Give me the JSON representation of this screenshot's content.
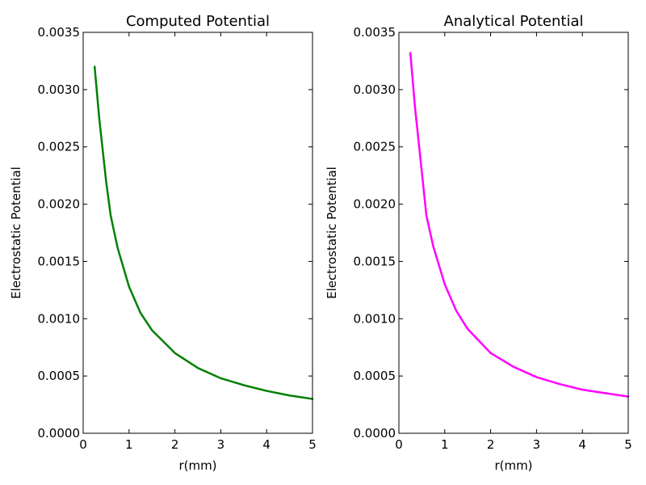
{
  "chart_data": [
    {
      "type": "line",
      "title": "Computed Potential",
      "xlabel": "r(mm)",
      "ylabel": "Electrostatic Potential",
      "xlim": [
        0,
        5
      ],
      "ylim": [
        0,
        0.0035
      ],
      "x_ticks": [
        "0",
        "1",
        "2",
        "3",
        "4",
        "5"
      ],
      "y_ticks": [
        "0.0000",
        "0.0005",
        "0.0010",
        "0.0015",
        "0.0020",
        "0.0025",
        "0.0030",
        "0.0035"
      ],
      "grid": false,
      "color": "#008000",
      "series": [
        {
          "x": [
            0.25,
            0.35,
            0.5,
            0.6,
            0.75,
            1.0,
            1.25,
            1.5,
            2.0,
            2.5,
            3.0,
            3.5,
            4.0,
            4.5,
            5.0
          ],
          "y": [
            0.0032,
            0.00275,
            0.0022,
            0.0019,
            0.00162,
            0.00128,
            0.00105,
            0.0009,
            0.0007,
            0.00057,
            0.00048,
            0.00042,
            0.00037,
            0.00033,
            0.0003
          ]
        }
      ]
    },
    {
      "type": "line",
      "title": "Analytical Potential",
      "xlabel": "r(mm)",
      "ylabel": "Electrostatic Potential",
      "xlim": [
        0,
        5
      ],
      "ylim": [
        0,
        0.0035
      ],
      "x_ticks": [
        "0",
        "1",
        "2",
        "3",
        "4",
        "5"
      ],
      "y_ticks": [
        "0.0000",
        "0.0005",
        "0.0010",
        "0.0015",
        "0.0020",
        "0.0025",
        "0.0030",
        "0.0035"
      ],
      "grid": false,
      "color": "#ff00ff",
      "series": [
        {
          "x": [
            0.25,
            0.35,
            0.5,
            0.6,
            0.75,
            1.0,
            1.25,
            1.5,
            2.0,
            2.5,
            3.0,
            3.5,
            4.0,
            4.5,
            5.0
          ],
          "y": [
            0.00332,
            0.00285,
            0.00228,
            0.0019,
            0.00163,
            0.0013,
            0.00107,
            0.00091,
            0.0007,
            0.00058,
            0.00049,
            0.00043,
            0.00038,
            0.00035,
            0.00032
          ]
        }
      ]
    }
  ]
}
